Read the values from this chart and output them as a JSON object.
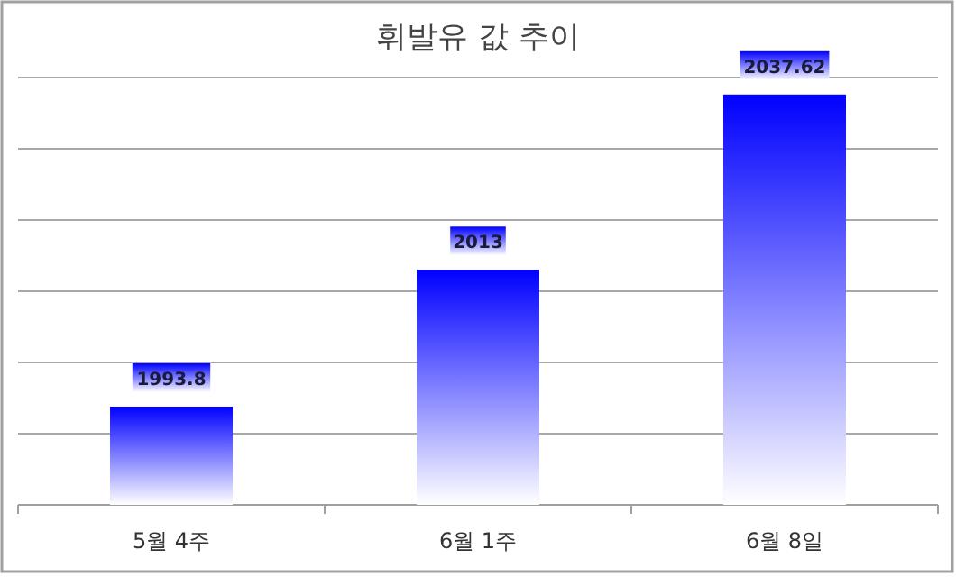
{
  "chart_data": {
    "type": "bar",
    "title": "휘발유 값 추이",
    "categories": [
      "5월 4주",
      "6월 1주",
      "6월 8일"
    ],
    "values": [
      1993.8,
      2013,
      2037.62
    ],
    "color": "#0000ff",
    "data_labels": true,
    "ylim": [
      1980,
      2040
    ],
    "yticks": [
      {
        "value": 1980,
        "label": null
      },
      {
        "value": 1990,
        "label": null
      },
      {
        "value": 2000,
        "label": null
      },
      {
        "value": 2010,
        "label": null
      },
      {
        "value": 2020,
        "label": null
      },
      {
        "value": 2030,
        "label": null
      },
      {
        "value": 2040,
        "label": null
      }
    ],
    "grid": "y"
  }
}
